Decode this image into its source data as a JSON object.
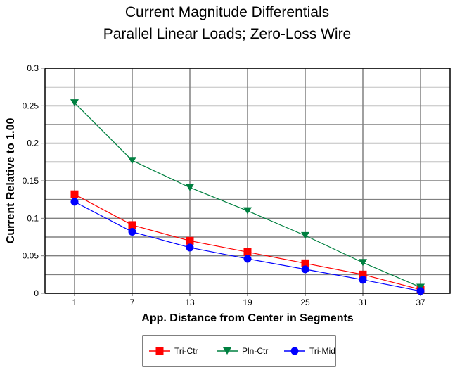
{
  "chart_data": {
    "type": "line",
    "title": [
      "Current Magnitude Differentials",
      "Parallel Linear Loads; Zero-Loss Wire"
    ],
    "xlabel": "App. Distance from Center in Segments",
    "ylabel": "Current Relative to 1.00",
    "categories": [
      "1",
      "7",
      "13",
      "19",
      "25",
      "31",
      "37"
    ],
    "ylim": [
      0,
      0.3
    ],
    "yticks": [
      "0",
      "0.05",
      "0.1",
      "0.15",
      "0.2",
      "0.25",
      "0.3"
    ],
    "ytick_values": [
      0,
      0.05,
      0.1,
      0.15,
      0.2,
      0.25,
      0.3
    ],
    "minor_grid_step": 0.025,
    "grid": true,
    "legend_position": "bottom",
    "series": [
      {
        "name": "Tri-Ctr",
        "color": "#ff0000",
        "marker": "square",
        "values": [
          0.132,
          0.091,
          0.07,
          0.055,
          0.04,
          0.025,
          0.005
        ]
      },
      {
        "name": "Pln-Ctr",
        "color": "#008040",
        "marker": "triangle-down",
        "values": [
          0.254,
          0.177,
          0.141,
          0.11,
          0.077,
          0.041,
          0.008
        ]
      },
      {
        "name": "Tri-Mid",
        "color": "#0000ff",
        "marker": "circle",
        "values": [
          0.122,
          0.082,
          0.061,
          0.046,
          0.032,
          0.018,
          0.003
        ]
      }
    ]
  }
}
